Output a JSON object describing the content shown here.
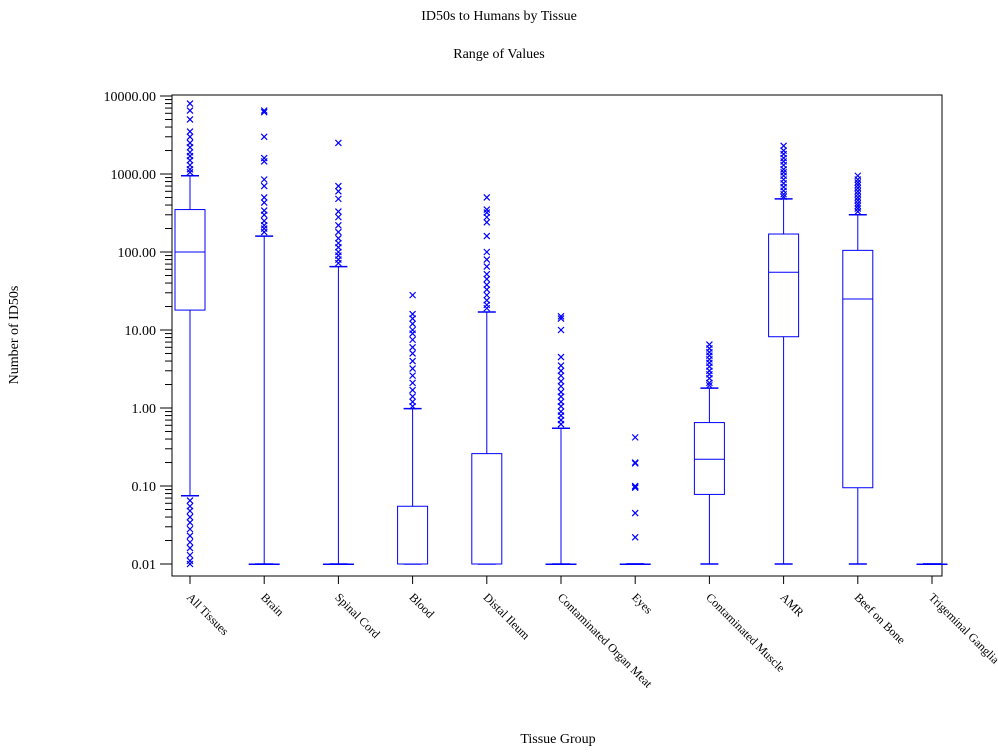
{
  "chart_data": {
    "type": "boxplot",
    "title": "ID50s to Humans by Tissue",
    "subtitle": "Range of Values",
    "xlabel": "Tissue Group",
    "ylabel": "Number of ID50s",
    "yscale": "log",
    "ylim": [
      0.01,
      10000
    ],
    "yticks": [
      {
        "value": 0.01,
        "label": "0.01"
      },
      {
        "value": 0.1,
        "label": "0.10"
      },
      {
        "value": 1,
        "label": "1.00"
      },
      {
        "value": 10,
        "label": "10.00"
      },
      {
        "value": 100,
        "label": "100.00"
      },
      {
        "value": 1000,
        "label": "1000.00"
      },
      {
        "value": 10000,
        "label": "10000.00"
      }
    ],
    "grid": false,
    "color": "#0000ff",
    "categories": [
      "All Tissues",
      "Brain",
      "Spinal Cord",
      "Blood",
      "Distal Ileum",
      "Contaminated Organ Meat",
      "Eyes",
      "Contaminated Muscle",
      "AMR",
      "Beef on Bone",
      "Trigeminal Ganglia"
    ],
    "boxes": [
      {
        "name": "All Tissues",
        "whisker_low": 0.075,
        "q1": 18,
        "median": 100,
        "q3": 350,
        "whisker_high": 950,
        "outliers": [
          8000,
          6500,
          5000,
          3500,
          3000,
          2500,
          2200,
          1900,
          1700,
          1500,
          1300,
          1150,
          1050,
          0.065,
          0.055,
          0.048,
          0.04,
          0.034,
          0.028,
          0.023,
          0.019,
          0.016,
          0.013,
          0.011,
          0.01
        ]
      },
      {
        "name": "Brain",
        "whisker_low": 0.01,
        "q1": 0.01,
        "median": 0.01,
        "q3": 0.01,
        "whisker_high": 160,
        "outliers": [
          6500,
          6200,
          3000,
          1600,
          1450,
          850,
          700,
          500,
          430,
          340,
          300,
          250,
          220,
          200,
          180
        ]
      },
      {
        "name": "Spinal Cord",
        "whisker_low": 0.01,
        "q1": 0.01,
        "median": 0.01,
        "q3": 0.01,
        "whisker_high": 65,
        "outliers": [
          2500,
          700,
          600,
          480,
          330,
          280,
          220,
          180,
          150,
          130,
          115,
          100,
          90,
          80,
          72
        ]
      },
      {
        "name": "Blood",
        "whisker_low": 0.01,
        "q1": 0.01,
        "median": 0.01,
        "q3": 0.055,
        "whisker_high": 0.98,
        "outliers": [
          28,
          16,
          14,
          12,
          10,
          9,
          7.5,
          6,
          5,
          4,
          3.2,
          2.6,
          2.1,
          1.7,
          1.4,
          1.2,
          1.05
        ]
      },
      {
        "name": "Distal Ileum",
        "whisker_low": 0.01,
        "q1": 0.01,
        "median": 0.01,
        "q3": 0.26,
        "whisker_high": 17,
        "outliers": [
          500,
          350,
          320,
          280,
          240,
          160,
          100,
          80,
          65,
          52,
          45,
          38,
          33,
          28,
          24,
          21,
          19
        ]
      },
      {
        "name": "Contaminated Organ Meat",
        "whisker_low": 0.01,
        "q1": 0.01,
        "median": 0.01,
        "q3": 0.01,
        "whisker_high": 0.55,
        "outliers": [
          15,
          14,
          10,
          4.5,
          3.5,
          3,
          2.6,
          2.2,
          1.9,
          1.6,
          1.4,
          1.2,
          1.05,
          0.9,
          0.8,
          0.7,
          0.62
        ]
      },
      {
        "name": "Eyes",
        "whisker_low": 0.01,
        "q1": 0.01,
        "median": 0.01,
        "q3": 0.01,
        "whisker_high": 0.01,
        "outliers": [
          0.42,
          0.2,
          0.195,
          0.1,
          0.098,
          0.095,
          0.045,
          0.022
        ]
      },
      {
        "name": "Contaminated Muscle",
        "whisker_low": 0.01,
        "q1": 0.078,
        "median": 0.22,
        "q3": 0.65,
        "whisker_high": 1.8,
        "outliers": [
          6.5,
          5.8,
          5.2,
          4.7,
          4.2,
          3.8,
          3.4,
          3.0,
          2.7,
          2.4,
          2.1,
          1.95
        ]
      },
      {
        "name": "AMR",
        "whisker_low": 0.01,
        "q1": 8.2,
        "median": 55,
        "q3": 170,
        "whisker_high": 480,
        "outliers": [
          2300,
          2000,
          1800,
          1600,
          1450,
          1300,
          1150,
          1050,
          950,
          850,
          760,
          680,
          610,
          550,
          510
        ]
      },
      {
        "name": "Beef on Bone",
        "whisker_low": 0.01,
        "q1": 0.095,
        "median": 25,
        "q3": 105,
        "whisker_high": 300,
        "outliers": [
          950,
          850,
          780,
          720,
          660,
          600,
          550,
          500,
          460,
          420,
          390,
          360,
          330
        ]
      },
      {
        "name": "Trigeminal Ganglia",
        "whisker_low": 0.01,
        "q1": 0.01,
        "median": 0.01,
        "q3": 0.01,
        "whisker_high": 0.01,
        "outliers": []
      }
    ]
  }
}
